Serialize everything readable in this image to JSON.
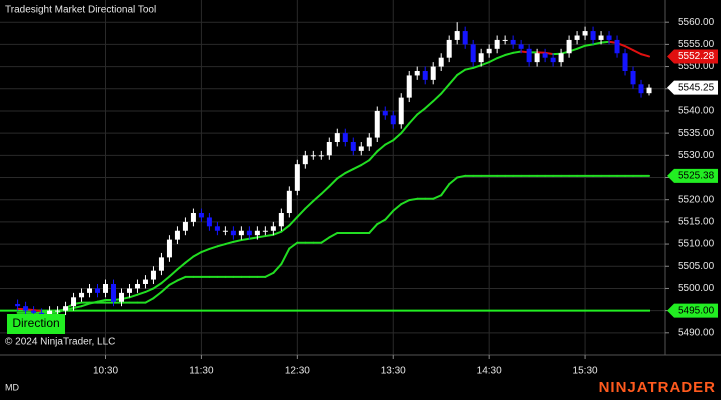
{
  "chart_data": {
    "type": "candlestick",
    "title": "Tradesight Market Directional Tool",
    "indicator_label": "Direction",
    "copyright": "© 2024 NinjaTrader, LLC",
    "footer_left": "MD",
    "brand": "NINJATRADER",
    "grid": true,
    "up_color": "#ffffff",
    "down_color": "#1515ff",
    "xlim": [
      564,
      980
    ],
    "xticks": [
      {
        "value": 630,
        "label": "10:30"
      },
      {
        "value": 690,
        "label": "11:30"
      },
      {
        "value": 750,
        "label": "12:30"
      },
      {
        "value": 810,
        "label": "13:30"
      },
      {
        "value": 870,
        "label": "14:30"
      },
      {
        "value": 930,
        "label": "15:30"
      }
    ],
    "ylim": [
      5485,
      5565
    ],
    "yticks": [
      {
        "value": 5490,
        "label": "5490.00"
      },
      {
        "value": 5495,
        "label": "5495.00"
      },
      {
        "value": 5500,
        "label": "5500.00"
      },
      {
        "value": 5505,
        "label": "5505.00"
      },
      {
        "value": 5510,
        "label": "5510.00"
      },
      {
        "value": 5515,
        "label": "5515.00"
      },
      {
        "value": 5520,
        "label": "5520.00"
      },
      {
        "value": 5525,
        "label": "5525.00"
      },
      {
        "value": 5530,
        "label": "5530.00"
      },
      {
        "value": 5535,
        "label": "5535.00"
      },
      {
        "value": 5540,
        "label": "5540.00"
      },
      {
        "value": 5545,
        "label": "5545.00"
      },
      {
        "value": 5550,
        "label": "5550.00"
      },
      {
        "value": 5555,
        "label": "5555.00"
      },
      {
        "value": 5560,
        "label": "5560.00"
      }
    ],
    "x": [
      575,
      580,
      585,
      590,
      595,
      600,
      605,
      610,
      615,
      620,
      625,
      630,
      635,
      640,
      645,
      650,
      655,
      660,
      665,
      670,
      675,
      680,
      685,
      690,
      695,
      700,
      705,
      710,
      715,
      720,
      725,
      730,
      735,
      740,
      745,
      750,
      755,
      760,
      765,
      770,
      775,
      780,
      785,
      790,
      795,
      800,
      805,
      810,
      815,
      820,
      825,
      830,
      835,
      840,
      845,
      850,
      855,
      860,
      865,
      870,
      875,
      880,
      885,
      890,
      895,
      900,
      905,
      910,
      915,
      920,
      925,
      930,
      935,
      940,
      945,
      950,
      955,
      960,
      965,
      970
    ],
    "open": [
      5496.5,
      5496,
      5495,
      5494.5,
      5494,
      5495,
      5495,
      5496,
      5498,
      5499,
      5500,
      5499,
      5501,
      5497,
      5499,
      5500,
      5501,
      5502,
      5504,
      5507,
      5511,
      5513,
      5515,
      5517,
      5516,
      5514,
      5513,
      5513,
      5512,
      5513,
      5512,
      5513,
      5513,
      5514,
      5517,
      5522,
      5528,
      5530,
      5530,
      5530,
      5533,
      5535,
      5533,
      5531,
      5532,
      5534,
      5540,
      5539,
      5537,
      5543,
      5548,
      5549,
      5547,
      5550,
      5552,
      5556,
      5558,
      5555,
      5551,
      5553,
      5554,
      5556,
      5556,
      5555,
      5554,
      5551,
      5553,
      5552,
      5551,
      5553,
      5556,
      5557,
      5558,
      5556,
      5557,
      5556,
      5553,
      5549,
      5546,
      5544
    ],
    "high": [
      5497.5,
      5497,
      5496,
      5495.5,
      5496,
      5496,
      5497,
      5499,
      5500,
      5501,
      5501,
      5502,
      5502,
      5500,
      5501,
      5502,
      5503,
      5505,
      5508,
      5512,
      5514,
      5516,
      5518,
      5518,
      5517,
      5515,
      5514,
      5514,
      5514,
      5514,
      5514,
      5514,
      5515,
      5518,
      5523,
      5529,
      5531,
      5531,
      5531,
      5534,
      5536,
      5536,
      5534,
      5533,
      5535,
      5541,
      5541,
      5540,
      5544,
      5549,
      5550,
      5550,
      5551,
      5553,
      5557,
      5560,
      5559,
      5556,
      5554,
      5555,
      5557,
      5557,
      5557,
      5556,
      5555,
      5554,
      5554,
      5553,
      5554,
      5557,
      5558,
      5559,
      5559,
      5558,
      5558,
      5557,
      5554,
      5550,
      5547,
      5546
    ],
    "low": [
      5495,
      5494,
      5493.5,
      5493,
      5493,
      5494,
      5494,
      5495,
      5497,
      5498,
      5498,
      5498,
      5496,
      5496,
      5498,
      5499,
      5500,
      5501,
      5503,
      5506,
      5510,
      5512,
      5514,
      5515,
      5513,
      5512,
      5512,
      5511,
      5511,
      5511,
      5511,
      5512,
      5512,
      5513,
      5516,
      5521,
      5527,
      5529,
      5529,
      5529,
      5532,
      5532,
      5530,
      5530,
      5531,
      5533,
      5538,
      5536,
      5536,
      5542,
      5547,
      5546,
      5546,
      5549,
      5551,
      5555,
      5554,
      5550,
      5550,
      5552,
      5553,
      5555,
      5554,
      5553,
      5550,
      5550,
      5551,
      5550,
      5550,
      5552,
      5555,
      5556,
      5555,
      5555,
      5555,
      5552,
      5548,
      5545,
      5543,
      5543.5
    ],
    "close": [
      5496,
      5495,
      5494.5,
      5494,
      5495,
      5495,
      5496,
      5498,
      5499,
      5500,
      5499,
      5501,
      5497,
      5499,
      5500,
      5501,
      5502,
      5504,
      5507,
      5511,
      5513,
      5515,
      5517,
      5516,
      5514,
      5513,
      5513,
      5512,
      5513,
      5512,
      5513,
      5513,
      5514,
      5517,
      5522,
      5528,
      5530,
      5530,
      5530,
      5533,
      5535,
      5533,
      5531,
      5532,
      5534,
      5540,
      5539,
      5537,
      5543,
      5548,
      5549,
      5547,
      5550,
      5552,
      5556,
      5558,
      5555,
      5551,
      5553,
      5554,
      5556,
      5556,
      5555,
      5554,
      5551,
      5553,
      5552,
      5551,
      5553,
      5556,
      5557,
      5558,
      5556,
      5557,
      5556,
      5553,
      5549,
      5546,
      5544,
      5545.25
    ],
    "series": [
      {
        "color": "#22dd22",
        "down_color": "#e01010",
        "values": [
          5495.4,
          5495.3,
          5495.1,
          5494.9,
          5494.9,
          5495.0,
          5495.2,
          5495.6,
          5496.0,
          5496.6,
          5497.0,
          5497.4,
          5497.4,
          5497.6,
          5498.0,
          5498.6,
          5499.2,
          5500.0,
          5501.2,
          5502.7,
          5504.3,
          5505.8,
          5507.2,
          5508.2,
          5508.9,
          5509.5,
          5510.0,
          5510.5,
          5510.9,
          5511.2,
          5511.5,
          5511.8,
          5512.1,
          5512.8,
          5514.2,
          5516.1,
          5518.0,
          5519.7,
          5521.3,
          5523.0,
          5524.8,
          5526.0,
          5526.9,
          5527.8,
          5528.9,
          5530.9,
          5532.4,
          5533.4,
          5535.0,
          5537.2,
          5539.2,
          5540.6,
          5542.2,
          5543.9,
          5546.0,
          5548.1,
          5549.3,
          5549.7,
          5550.3,
          5551.0,
          5551.9,
          5552.6,
          5553.1,
          5553.4,
          5553.2,
          5553.2,
          5553.1,
          5552.8,
          5552.9,
          5553.4,
          5554.0,
          5554.7,
          5555.0,
          5555.4,
          5555.6,
          5555.3,
          5554.6,
          5553.7,
          5552.8,
          5552.28
        ]
      },
      {
        "color": "#22dd22",
        "values": [
          5494.5,
          5494.5,
          5494.5,
          5494.5,
          5494.5,
          5494.5,
          5495.5,
          5496.5,
          5496.8,
          5496.8,
          5496.8,
          5496.8,
          5496.8,
          5496.8,
          5496.8,
          5496.8,
          5496.8,
          5497.8,
          5499.2,
          5500.8,
          5501.8,
          5502.6,
          5502.6,
          5502.6,
          5502.6,
          5502.6,
          5502.6,
          5502.6,
          5502.6,
          5502.6,
          5502.6,
          5502.6,
          5503.5,
          5505.5,
          5509.0,
          5510.3,
          5510.3,
          5510.3,
          5510.3,
          5511.5,
          5512.5,
          5512.5,
          5512.5,
          5512.5,
          5512.5,
          5514.5,
          5515.5,
          5517.5,
          5519.0,
          5519.9,
          5520.2,
          5520.2,
          5520.2,
          5521.0,
          5523.5,
          5525.0,
          5525.38,
          5525.38,
          5525.38,
          5525.38,
          5525.38,
          5525.38,
          5525.38,
          5525.38,
          5525.38,
          5525.38,
          5525.38,
          5525.38,
          5525.38,
          5525.38,
          5525.38,
          5525.38,
          5525.38,
          5525.38,
          5525.38,
          5525.38,
          5525.38,
          5525.38,
          5525.38,
          5525.38
        ]
      }
    ],
    "price_markers": [
      {
        "value": 5552.28,
        "label": "5552.28",
        "color": "#e01010",
        "text_color": "#ffffff"
      },
      {
        "value": 5545.25,
        "label": "5545.25",
        "color": "#ffffff",
        "text_color": "#000000"
      },
      {
        "value": 5525.38,
        "label": "5525.38",
        "color": "#22ee22",
        "text_color": "#000000"
      },
      {
        "value": 5495,
        "label": "5495.00",
        "color": "#22ee22",
        "text_color": "#000000",
        "line": true
      }
    ]
  }
}
